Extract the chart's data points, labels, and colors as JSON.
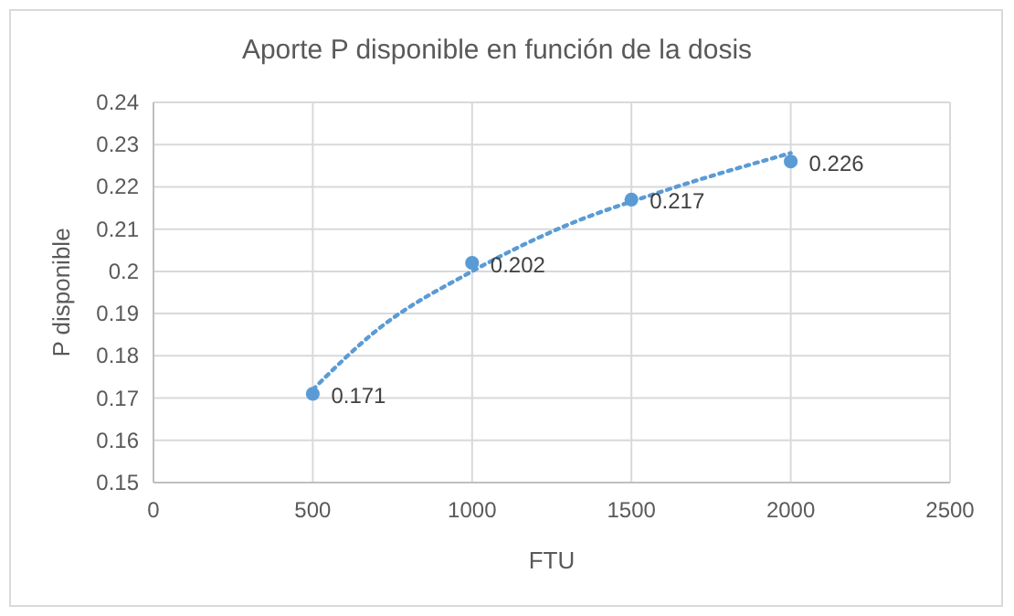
{
  "chart_data": {
    "type": "scatter",
    "title": "Aporte P disponible en función de la dosis",
    "xlabel": "FTU",
    "ylabel": "P disponible",
    "xlim": [
      0,
      2500
    ],
    "xticks": [
      0,
      500,
      1000,
      1500,
      2000,
      2500
    ],
    "ylim": [
      0.15,
      0.24
    ],
    "yticks": [
      0.15,
      0.16,
      0.17,
      0.18,
      0.19,
      0.2,
      0.21,
      0.22,
      0.23,
      0.24
    ],
    "grid": true,
    "series": [
      {
        "color": "#5b9bd5",
        "marker": "circle",
        "x": [
          500,
          1000,
          1500,
          2000
        ],
        "values": [
          0.171,
          0.202,
          0.217,
          0.226
        ],
        "value_labels": [
          "0.171",
          "0.202",
          "0.217",
          "0.226"
        ]
      },
      {
        "type": "line",
        "color": "#5b9bd5",
        "line_style": "dotted",
        "marker": "none",
        "x": [
          500,
          700,
          1000,
          1300,
          1600,
          2000
        ],
        "values": [
          0.172,
          0.186,
          0.2,
          0.211,
          0.219,
          0.228
        ]
      }
    ]
  }
}
